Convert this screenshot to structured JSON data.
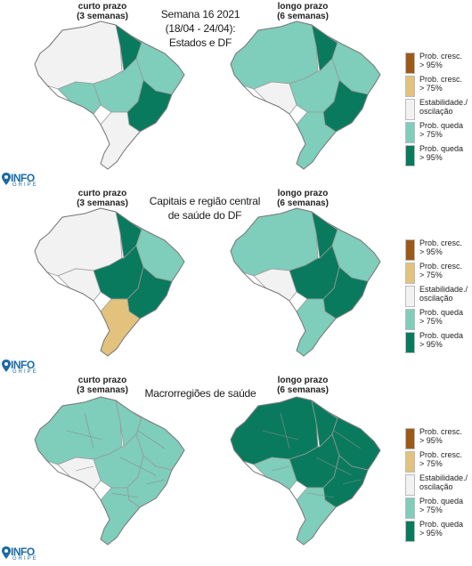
{
  "rows": [
    {
      "left_header": "curto prazo\n(3 semanas)",
      "right_header": "longo prazo\n(6 semanas)",
      "title": "Semana 16 2021\n(18/04 - 24/04):\nEstados e DF"
    },
    {
      "left_header": "curto prazo\n(3 semanas)",
      "right_header": "longo prazo\n(6 semanas)",
      "title": "Capitais e região central\nde saúde do DF"
    },
    {
      "left_header": "curto prazo\n(3 semanas)",
      "right_header": "longo prazo\n(6 semanas)",
      "title": "Macrorregiões de saúde"
    }
  ],
  "legend": [
    {
      "label": "Prob. cresc.\n> 95%",
      "color": "#9b5a1a"
    },
    {
      "label": "Prob. cresc.\n> 75%",
      "color": "#e3c27d"
    },
    {
      "label": "Estabilidade./\noscilação",
      "color": "#f2f2f2"
    },
    {
      "label": "Prob. queda\n> 75%",
      "color": "#7fcdbb"
    },
    {
      "label": "Prob. queda\n> 95%",
      "color": "#0a7a5e"
    }
  ],
  "logo": {
    "name": "INFO",
    "sub": "GRIPE",
    "color": "#1b6aa5"
  },
  "icons": {
    "logo_pin": "location-pin-icon"
  }
}
